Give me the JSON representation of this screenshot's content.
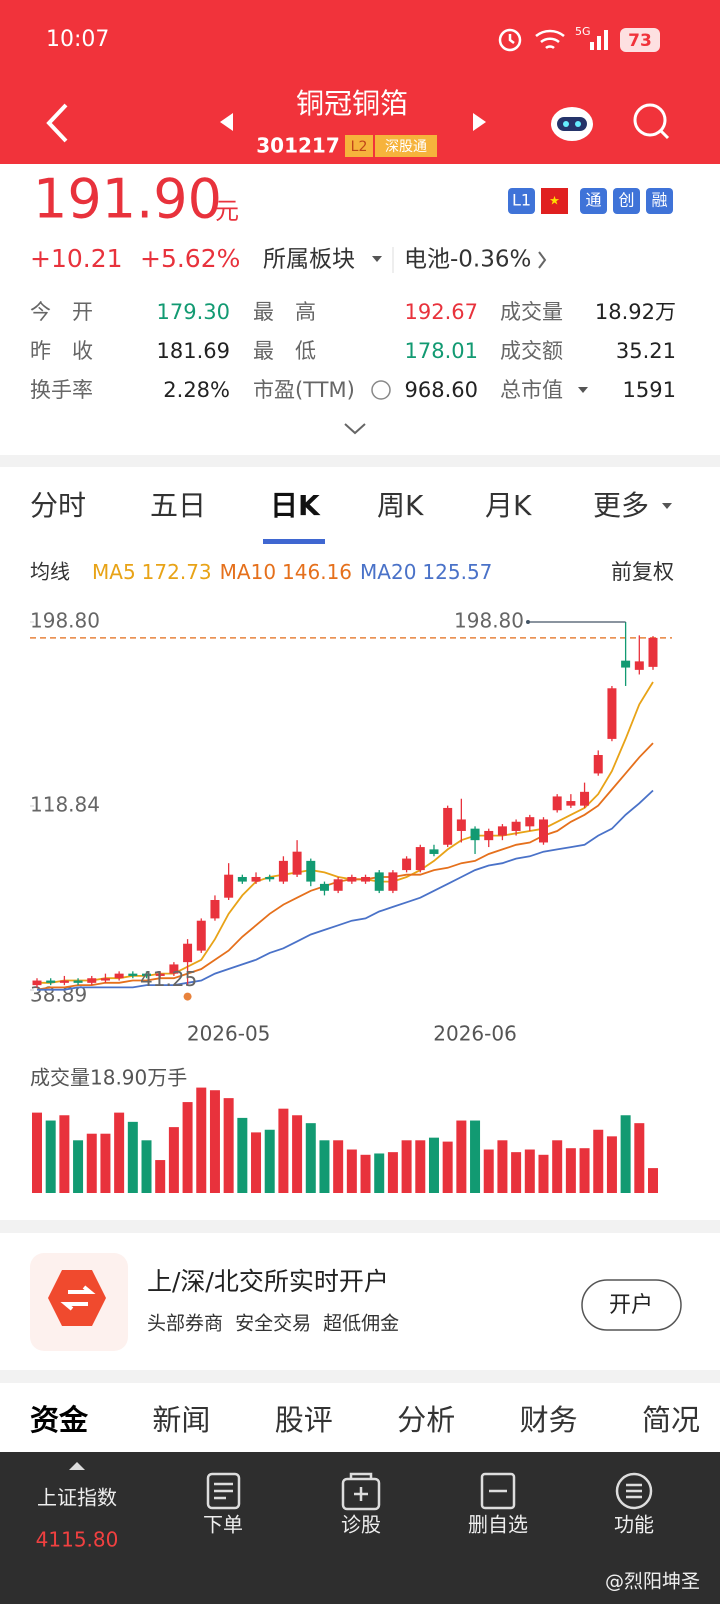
{
  "status_bar": {
    "time": "10:07",
    "network": "5G",
    "battery": "73"
  },
  "header": {
    "name": "铜冠铜箔",
    "code": "301217",
    "tags": [
      "L2",
      "深股通"
    ]
  },
  "quote": {
    "price": "191.90",
    "unit": "元",
    "change": "+10.21",
    "change_pct": "+5.62%",
    "sector": "所属板块",
    "related": "电池-0.36%",
    "badges": [
      "L1",
      "通",
      "创",
      "融"
    ],
    "stats": [
      [
        "今　开",
        "179.30",
        "最　高",
        "192.67",
        "成交量",
        "18.92万"
      ],
      [
        "昨　收",
        "181.69",
        "最　低",
        "178.01",
        "成交额",
        "35.21"
      ],
      [
        "换手率",
        "2.28%",
        "市盈(TTM)",
        "968.60",
        "总市值",
        "1591"
      ]
    ]
  },
  "chart_tabs": [
    "分时",
    "五日",
    "日K",
    "周K",
    "月K",
    "更多"
  ],
  "chart_tab_active": 2,
  "ma_bar": {
    "title": "均线",
    "adjust": "前复权"
  },
  "chart_data": {
    "type": "candlestick",
    "categories": [
      null,
      null,
      null,
      null,
      null,
      null,
      null,
      null,
      null,
      null,
      null,
      null,
      null,
      null,
      "2026-05",
      null,
      null,
      null,
      null,
      null,
      null,
      null,
      null,
      null,
      null,
      null,
      null,
      null,
      null,
      null,
      null,
      null,
      "2026-06",
      null,
      null,
      null,
      null,
      null,
      null,
      null,
      null,
      null,
      null,
      null,
      null,
      null
    ],
    "open": [
      41,
      43,
      42,
      43,
      42,
      43,
      44,
      46,
      46,
      45,
      46,
      51,
      56,
      70,
      79,
      88,
      86,
      88,
      86,
      89,
      95,
      85,
      82,
      86,
      86,
      90,
      82,
      91,
      91,
      100,
      102,
      108,
      109,
      104,
      106,
      108,
      110,
      103,
      117,
      119,
      119,
      133,
      148,
      182,
      178,
      179.3
    ],
    "close": [
      43,
      42,
      43,
      42,
      44,
      44,
      46,
      45,
      45,
      46,
      50,
      59,
      69,
      78,
      89,
      86,
      88,
      87,
      95,
      99,
      86,
      82,
      87,
      88,
      88,
      82,
      90,
      96,
      101,
      98,
      118,
      113,
      104,
      108,
      110,
      112,
      114,
      113,
      123,
      121,
      125,
      141,
      170,
      179,
      181.69,
      191.9
    ],
    "high": [
      44,
      44,
      45,
      44,
      45,
      46,
      47,
      47,
      47,
      47,
      51,
      61,
      70,
      80,
      94,
      89,
      90,
      89,
      97,
      104,
      96,
      86,
      88,
      89,
      89,
      91,
      91,
      97,
      102,
      102,
      119,
      122,
      110,
      109,
      111,
      113,
      115,
      114,
      124,
      124,
      129,
      143,
      171,
      198.8,
      193,
      192.67
    ],
    "low": [
      40,
      41,
      41,
      41,
      41,
      42,
      43,
      44,
      44,
      44,
      45,
      41.25,
      55,
      69,
      78,
      85,
      85,
      86,
      85,
      88,
      84,
      80,
      81,
      85,
      85,
      81,
      81,
      90,
      90,
      97,
      101,
      103,
      98,
      101,
      104,
      106,
      108,
      102,
      116,
      118,
      118,
      132,
      147,
      171,
      176,
      178.01
    ],
    "up_color": "#e8323c",
    "down_color": "#129a72",
    "series": [
      {
        "name": "MA5",
        "color": "#e8a317",
        "values": [
          42,
          42,
          43,
          43,
          43,
          44,
          44,
          45,
          45,
          46,
          46,
          49,
          52,
          61,
          72,
          80,
          86,
          88,
          89,
          90,
          91,
          90,
          88,
          87,
          87,
          86,
          86,
          88,
          91,
          95,
          100,
          104,
          106,
          106,
          106,
          107,
          108,
          109,
          112,
          115,
          118,
          124,
          134,
          148,
          163,
          172.73
        ]
      },
      {
        "name": "MA10",
        "color": "#e5701c",
        "values": [
          39,
          40,
          40,
          41,
          41,
          42,
          42,
          43,
          43,
          44,
          44,
          46,
          48,
          52,
          56,
          62,
          67,
          72,
          76,
          79,
          82,
          84,
          86,
          87,
          87,
          88,
          88,
          89,
          89,
          91,
          92,
          94,
          95,
          98,
          100,
          102,
          103,
          106,
          108,
          112,
          115,
          119,
          126,
          133,
          140,
          146.16
        ]
      },
      {
        "name": "MA20",
        "color": "#4a72c8",
        "values": [
          39,
          39,
          39,
          40,
          40,
          40,
          40,
          40,
          41,
          41,
          41,
          42,
          43,
          46,
          48,
          50,
          52,
          55,
          57,
          60,
          63,
          65,
          67,
          69,
          70,
          73,
          75,
          77,
          79,
          82,
          85,
          88,
          91,
          93,
          94,
          96,
          97,
          99,
          100,
          101,
          102,
          106,
          109,
          115,
          120,
          125.57
        ]
      }
    ],
    "ylim": [
      38.89,
      198.8
    ],
    "yticks": [
      {
        "value": 198.8,
        "label": "198.80"
      },
      118.84,
      38.89
    ],
    "annotations": [
      {
        "value": 198.8,
        "label": "198.80"
      },
      {
        "value": 41.25,
        "label": "41.25"
      }
    ],
    "volume": {
      "label": "成交量18.90万手",
      "ylim": [
        0,
        85
      ],
      "values": [
        61,
        55,
        59,
        40,
        45,
        45,
        61,
        54,
        40,
        25,
        50,
        69,
        80,
        78,
        72,
        57,
        46,
        48,
        64,
        59,
        53,
        40,
        40,
        33,
        29,
        30,
        31,
        40,
        40,
        42,
        39,
        55,
        55,
        33,
        40,
        31,
        33,
        29,
        40,
        34,
        34,
        48,
        43,
        59,
        53,
        18.9
      ]
    }
  },
  "ad": {
    "title": "上/深/北交所实时开户",
    "subtitle": "头部券商  安全交易  超低佣金",
    "button": "开户"
  },
  "info_tabs": [
    "资金",
    "新闻",
    "股评",
    "分析",
    "财务",
    "简况"
  ],
  "nav": [
    {
      "label": "上证指数",
      "value": "4115.80"
    },
    {
      "label": "下单"
    },
    {
      "label": "诊股"
    },
    {
      "label": "删自选"
    },
    {
      "label": "功能"
    }
  ],
  "watermark": "@烈阳坤圣"
}
